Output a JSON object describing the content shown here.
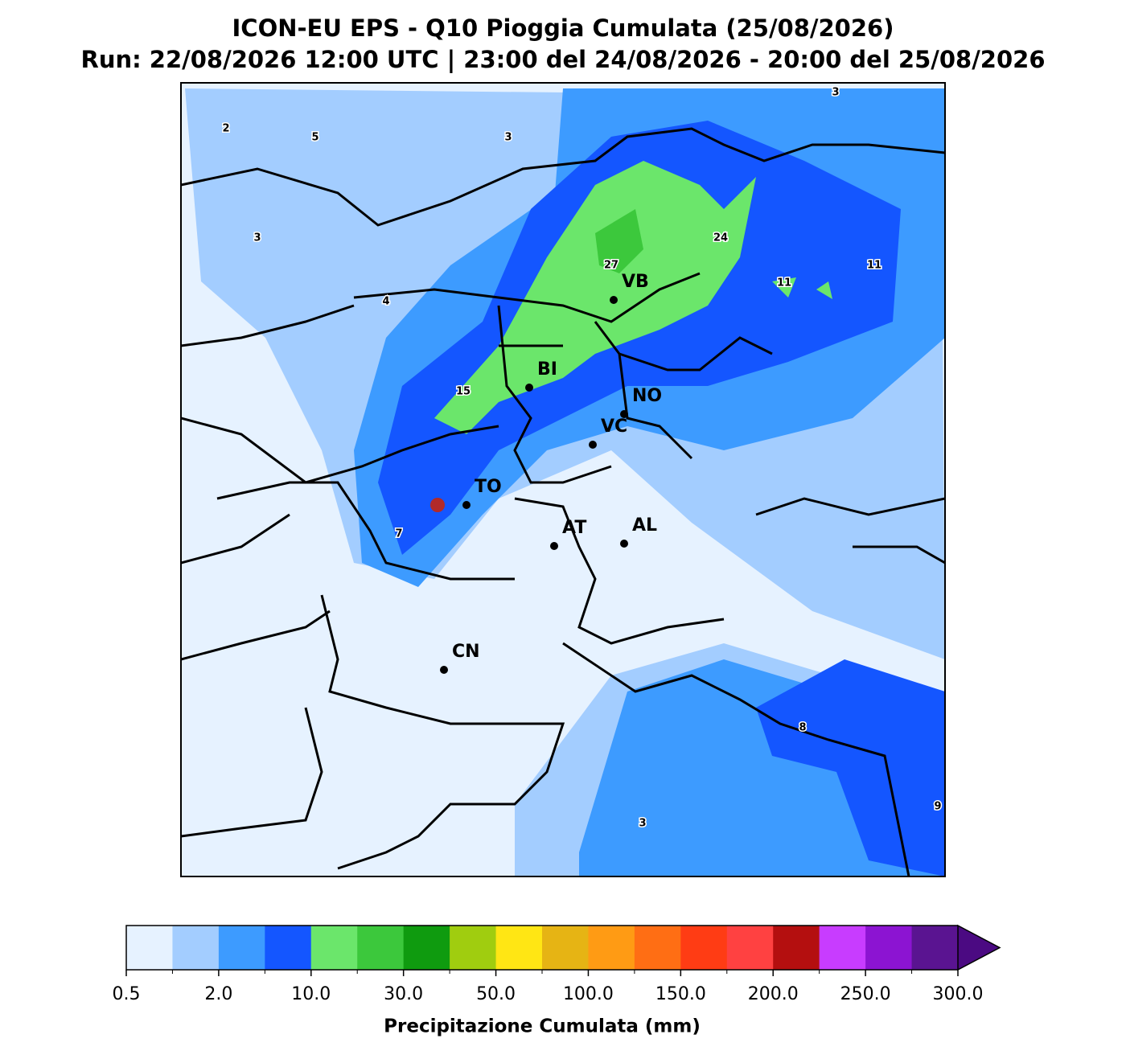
{
  "header": {
    "title": "ICON-EU EPS - Q10 Pioggia Cumulata (25/08/2026)",
    "subtitle": "Run: 22/08/2026 12:00 UTC | 23:00 del 24/08/2026 - 20:00 del 25/08/2026"
  },
  "cities": [
    "VB",
    "BI",
    "NO",
    "VC",
    "TO",
    "AT",
    "AL",
    "CN"
  ],
  "contour_labels": [
    "2",
    "5",
    "3",
    "3",
    "3",
    "4",
    "27",
    "24",
    "11",
    "11",
    "15",
    "7",
    "8",
    "9",
    "3"
  ],
  "colorbar": {
    "label": "Precipitazione Cumulata (mm)",
    "ticks": [
      {
        "value": 0.5,
        "label": "0.5"
      },
      {
        "value": 2,
        "label": "2.0"
      },
      {
        "value": 10,
        "label": "10.0"
      },
      {
        "value": 30,
        "label": "30.0"
      },
      {
        "value": 50,
        "label": "50.0"
      },
      {
        "value": 100,
        "label": "100.0"
      },
      {
        "value": 150,
        "label": "150.0"
      },
      {
        "value": 200,
        "label": "200.0"
      },
      {
        "value": 250,
        "label": "250.0"
      },
      {
        "value": 300,
        "label": "300.0"
      }
    ],
    "colors": [
      "#e6f2ff",
      "#a3cdff",
      "#3d9bff",
      "#1456ff",
      "#6be66b",
      "#3cc83c",
      "#0f9b0f",
      "#a0cd0f",
      "#ffe614",
      "#e6b414",
      "#ff9b14",
      "#ff6e14",
      "#ff3c14",
      "#ff4141",
      "#b40f0f",
      "#c83cff",
      "#8c14d2",
      "#5a1491"
    ],
    "extend_color": "#4b0a82"
  }
}
